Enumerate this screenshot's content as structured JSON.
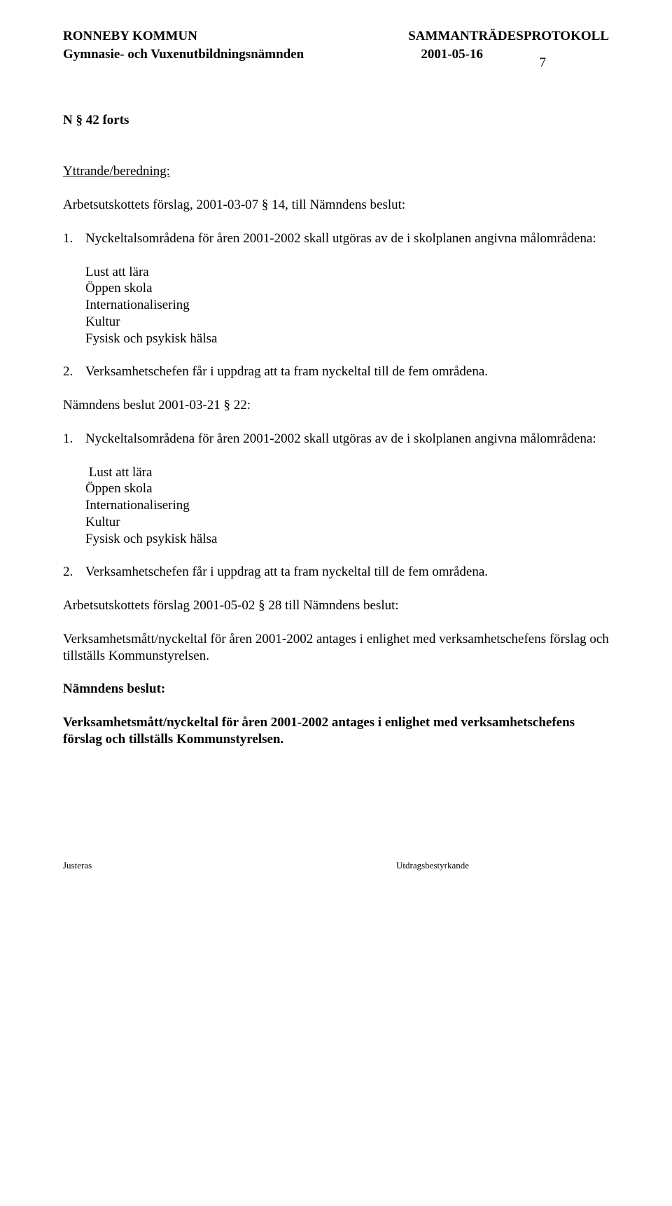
{
  "page_number": "7",
  "header": {
    "org": "RONNEBY KOMMUN",
    "doc_type": "SAMMANTRÄDESPROTOKOLL",
    "committee": "Gymnasie- och Vuxenutbildningsnämnden",
    "date": "2001-05-16"
  },
  "section_id": "N § 42 forts",
  "heading": "Yttrande/beredning:",
  "p1": "Arbetsutskottets förslag, 2001-03-07 § 14, till Nämndens beslut:",
  "item1_num": "1.",
  "item1_text": "Nyckeltalsområdena för åren 2001-2002 skall utgöras av de i skolplanen angivna målområdena:",
  "bullet_block": {
    "b1": "Lust att lära",
    "b2": "Öppen skola",
    "b3": "Internationalisering",
    "b4": "Kultur",
    "b5": "Fysisk och psykisk hälsa"
  },
  "item2_num": "2.",
  "item2_text": "Verksamhetschefen får i uppdrag att ta fram nyckeltal till de fem områdena.",
  "p2": "Nämndens beslut 2001-03-21 § 22:",
  "item3_num": "1.",
  "item3_text": "Nyckeltalsområdena för åren 2001-2002 skall utgöras av de i skolplanen angivna målområdena:",
  "bullet_block2": {
    "b1": " Lust att lära",
    "b2": "Öppen skola",
    "b3": "Internationalisering",
    "b4": "Kultur",
    "b5": "Fysisk och psykisk hälsa"
  },
  "item4_num": "2.",
  "item4_text": "Verksamhetschefen får i uppdrag att ta fram nyckeltal till de fem områdena.",
  "p3": "Arbetsutskottets förslag 2001-05-02 § 28 till Nämndens beslut:",
  "p4": "Verksamhetsmått/nyckeltal för åren 2001-2002 antages i enlighet med verksamhetschefens förslag och tillställs Kommunstyrelsen.",
  "beslut_heading": "Nämndens beslut:",
  "beslut_text": "Verksamhetsmått/nyckeltal för åren 2001-2002 antages i enlighet med verksamhetschefens förslag och tillställs Kommunstyrelsen.",
  "footer": {
    "left": "Justeras",
    "right": "Utdragsbestyrkande"
  }
}
